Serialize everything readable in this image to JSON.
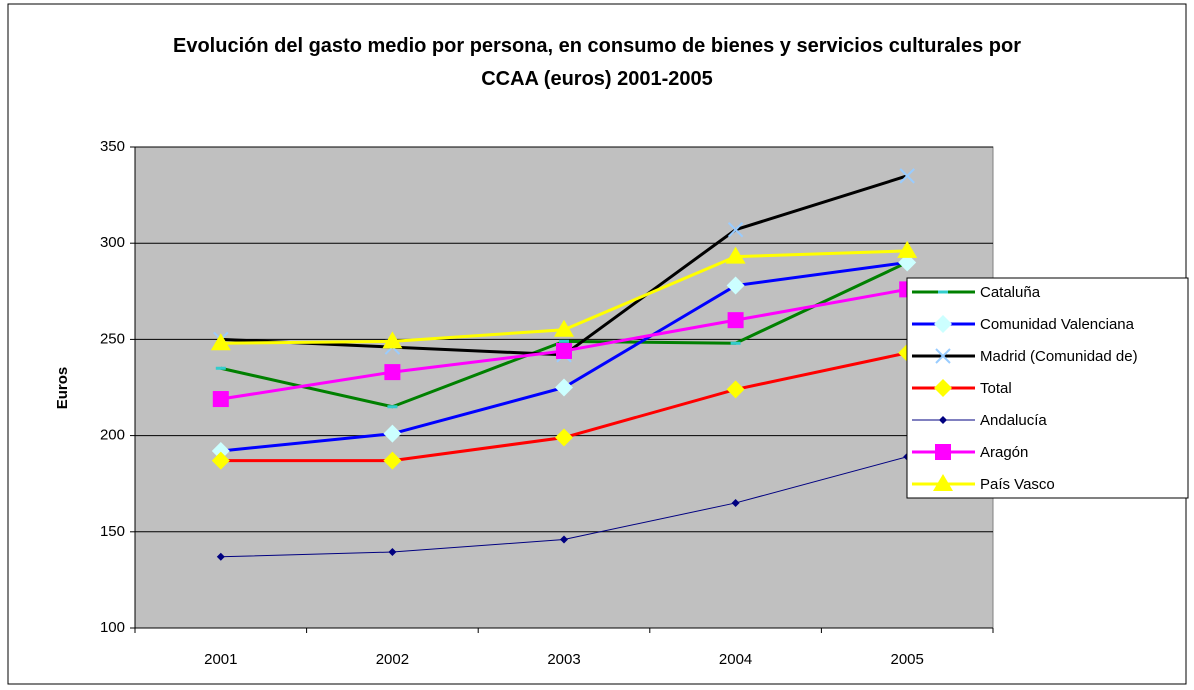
{
  "chart_data": {
    "type": "line",
    "title": "Evolución del gasto medio por persona, en consumo de bienes y servicios culturales por CCAA (euros) 2001-2005",
    "y_label": "Euros",
    "categories": [
      "2001",
      "2002",
      "2003",
      "2004",
      "2005"
    ],
    "ylim": [
      100,
      350
    ],
    "yticks": [
      100,
      150,
      200,
      250,
      300,
      350
    ],
    "grid": true,
    "legend": "right",
    "series": [
      {
        "name": "Cataluña",
        "color": "#008000",
        "marker": "dash",
        "marker_color": "#33cccc",
        "values": [
          235,
          215,
          249,
          248,
          290
        ]
      },
      {
        "name": "Comunidad Valenciana",
        "color": "#0000ff",
        "marker": "diamond",
        "marker_color": "#ccffff",
        "values": [
          192,
          201,
          225,
          278,
          290
        ]
      },
      {
        "name": "Madrid (Comunidad de)",
        "color": "#000000",
        "marker": "cross",
        "marker_color": "#99ccff",
        "values": [
          250,
          246,
          242,
          307,
          335
        ]
      },
      {
        "name": "Total",
        "color": "#ff0000",
        "marker": "diamond",
        "marker_color": "#ffff00",
        "values": [
          187,
          187,
          199,
          224,
          243
        ]
      },
      {
        "name": "Andalucía",
        "color": "#000080",
        "marker": "diamond-small",
        "marker_color": "#000080",
        "values": [
          137,
          139.5,
          146,
          165,
          189
        ]
      },
      {
        "name": "Aragón",
        "color": "#ff00ff",
        "marker": "square",
        "marker_color": "#ff00ff",
        "values": [
          219,
          233,
          244,
          260,
          276
        ]
      },
      {
        "name": "País Vasco",
        "color": "#ffff00",
        "marker": "triangle",
        "marker_color": "#ffff00",
        "values": [
          248,
          249,
          255,
          293,
          296
        ]
      }
    ]
  }
}
